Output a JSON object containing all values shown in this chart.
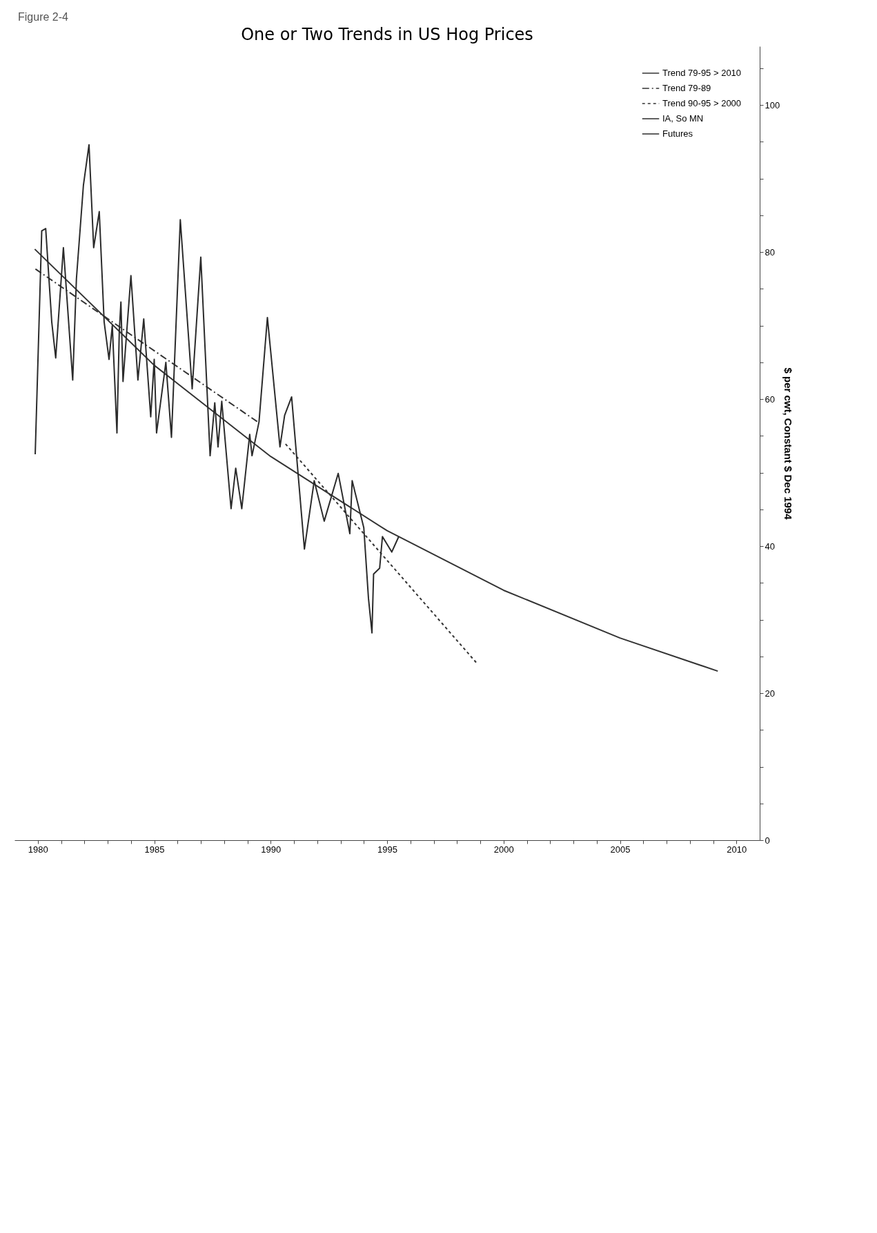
{
  "chart_data": {
    "type": "line",
    "title": "One or Two Trends in US Hog Prices",
    "ylabel": "$ per cwt, Constant $ Dec 1994",
    "annotations": [
      "Figure 2-4"
    ],
    "xlim": [
      1979,
      2011
    ],
    "xticks": [
      1980,
      {
        "value": 1981,
        "label": null
      },
      {
        "value": 1982,
        "label": null
      },
      {
        "value": 1983,
        "label": null
      },
      {
        "value": 1984,
        "label": null
      },
      1985,
      {
        "value": 1986,
        "label": null
      },
      {
        "value": 1987,
        "label": null
      },
      {
        "value": 1988,
        "label": null
      },
      {
        "value": 1989,
        "label": null
      },
      1990,
      {
        "value": 1991,
        "label": null
      },
      {
        "value": 1992,
        "label": null
      },
      {
        "value": 1993,
        "label": null
      },
      {
        "value": 1994,
        "label": null
      },
      1995,
      {
        "value": 1996,
        "label": null
      },
      {
        "value": 1997,
        "label": null
      },
      {
        "value": 1998,
        "label": null
      },
      {
        "value": 1999,
        "label": null
      },
      2000,
      {
        "value": 2001,
        "label": null
      },
      {
        "value": 2002,
        "label": null
      },
      {
        "value": 2003,
        "label": null
      },
      {
        "value": 2004,
        "label": null
      },
      2005,
      {
        "value": 2006,
        "label": null
      },
      {
        "value": 2007,
        "label": null
      },
      {
        "value": 2008,
        "label": null
      },
      {
        "value": 2009,
        "label": null
      },
      2010
    ],
    "ylim": [
      0,
      108
    ],
    "yticks": [
      0,
      {
        "value": 5,
        "label": null
      },
      {
        "value": 10,
        "label": null
      },
      {
        "value": 15,
        "label": null
      },
      20,
      {
        "value": 25,
        "label": null
      },
      {
        "value": 30,
        "label": null
      },
      {
        "value": 35,
        "label": null
      },
      40,
      {
        "value": 45,
        "label": null
      },
      {
        "value": 50,
        "label": null
      },
      {
        "value": 55,
        "label": null
      },
      60,
      {
        "value": 65,
        "label": null
      },
      {
        "value": 70,
        "label": null
      },
      {
        "value": 75,
        "label": null
      },
      80,
      {
        "value": 85,
        "label": null
      },
      {
        "value": 90,
        "label": null
      },
      {
        "value": 95,
        "label": null
      },
      100,
      {
        "value": 105,
        "label": null
      }
    ],
    "legend": "top right",
    "series": [
      {
        "name": "Trend 79-95 > 2010",
        "color": "#333333",
        "line_style": "solid",
        "x": [
          1979.87,
          1985,
          1990,
          1995,
          2000,
          2005,
          2009.2
        ],
        "values": [
          80.4,
          64.6,
          52.2,
          42.1,
          34.0,
          27.5,
          23.0
        ]
      },
      {
        "name": "Trend 79-89",
        "color": "#333333",
        "line_style": "dashed",
        "x": [
          1979.9,
          1989.44
        ],
        "values": [
          77.7,
          56.9
        ]
      },
      {
        "name": "Trend 90-95 > 2000",
        "color": "#333333",
        "line_style": "dotted",
        "x": [
          1990.64,
          1998.9
        ],
        "values": [
          53.9,
          23.9
        ]
      },
      {
        "name": "IA, So MN",
        "color": "#2b2b2b",
        "line_style": "solid",
        "x": [
          1979.89,
          1980.17,
          1980.34,
          1980.6,
          1980.77,
          1981.1,
          1981.5,
          1981.66,
          1981.96,
          1982.2,
          1982.4,
          1982.64,
          1982.85,
          1983.06,
          1983.2,
          1983.4,
          1983.5,
          1983.57,
          1983.66,
          1984.0,
          1984.3,
          1984.55,
          1984.85,
          1985.0,
          1985.1,
          1985.5,
          1985.74,
          1986.12,
          1986.63,
          1987.0,
          1987.4,
          1987.6,
          1987.74,
          1987.9,
          1988.3,
          1988.5,
          1988.76,
          1989.1,
          1989.2,
          1989.5,
          1989.86,
          1990.4,
          1990.6,
          1990.9,
          1991.45,
          1991.87,
          1992.3,
          1992.9,
          1993.4,
          1993.5,
          1994.0,
          1994.2,
          1994.35,
          1994.42,
          1994.68,
          1994.8,
          1995.2,
          1995.5
        ],
        "values": [
          52.5,
          82.9,
          83.2,
          70.5,
          65.6,
          80.6,
          62.6,
          76.4,
          89.1,
          94.6,
          80.6,
          85.5,
          70.5,
          65.4,
          70.0,
          55.4,
          69.2,
          73.2,
          62.4,
          76.8,
          62.6,
          70.9,
          57.6,
          65.4,
          55.4,
          65.0,
          54.8,
          84.4,
          61.4,
          79.3,
          52.3,
          59.5,
          53.5,
          59.7,
          45.1,
          50.6,
          45.1,
          55.2,
          52.3,
          56.9,
          71.1,
          53.5,
          57.8,
          60.3,
          39.6,
          48.9,
          43.4,
          49.9,
          41.7,
          48.9,
          42.5,
          32.9,
          28.2,
          36.2,
          37.0,
          41.3,
          39.2,
          41.3
        ]
      },
      {
        "name": "Futures",
        "color": "#2b2b2b",
        "line_style": "solid"
      }
    ]
  }
}
